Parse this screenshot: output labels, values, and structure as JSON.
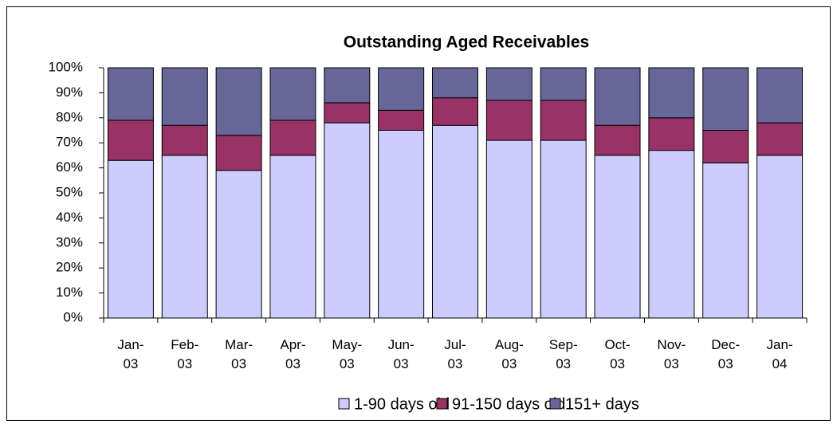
{
  "chart_data": {
    "type": "stacked_bar",
    "title": "Outstanding Aged Receivables",
    "categories": [
      "Jan-03",
      "Feb-03",
      "Mar-03",
      "Apr-03",
      "May-03",
      "Jun-03",
      "Jul-03",
      "Aug-03",
      "Sep-03",
      "Oct-03",
      "Nov-03",
      "Dec-03",
      "Jan-04"
    ],
    "series": [
      {
        "name": "1-90 days old",
        "color": "#ccccff",
        "values": [
          63,
          65,
          59,
          65,
          78,
          75,
          77,
          71,
          71,
          65,
          67,
          62,
          65
        ]
      },
      {
        "name": "91-150 days old",
        "color": "#993366",
        "values": [
          16,
          12,
          14,
          14,
          8,
          8,
          11,
          16,
          16,
          12,
          13,
          13,
          13
        ]
      },
      {
        "name": "151+ days",
        "color": "#666699",
        "values": [
          21,
          23,
          27,
          21,
          14,
          17,
          12,
          13,
          13,
          23,
          20,
          25,
          22
        ]
      }
    ],
    "ylim": [
      0,
      100
    ],
    "yticks": [
      {
        "value": 0,
        "label": "0%"
      },
      {
        "value": 10,
        "label": "10%"
      },
      {
        "value": 20,
        "label": "20%"
      },
      {
        "value": 30,
        "label": "30%"
      },
      {
        "value": 40,
        "label": "40%"
      },
      {
        "value": 50,
        "label": "50%"
      },
      {
        "value": 60,
        "label": "60%"
      },
      {
        "value": 70,
        "label": "70%"
      },
      {
        "value": 80,
        "label": "80%"
      },
      {
        "value": 90,
        "label": "90%"
      },
      {
        "value": 100,
        "label": "100%"
      }
    ],
    "legend": "bottom"
  }
}
